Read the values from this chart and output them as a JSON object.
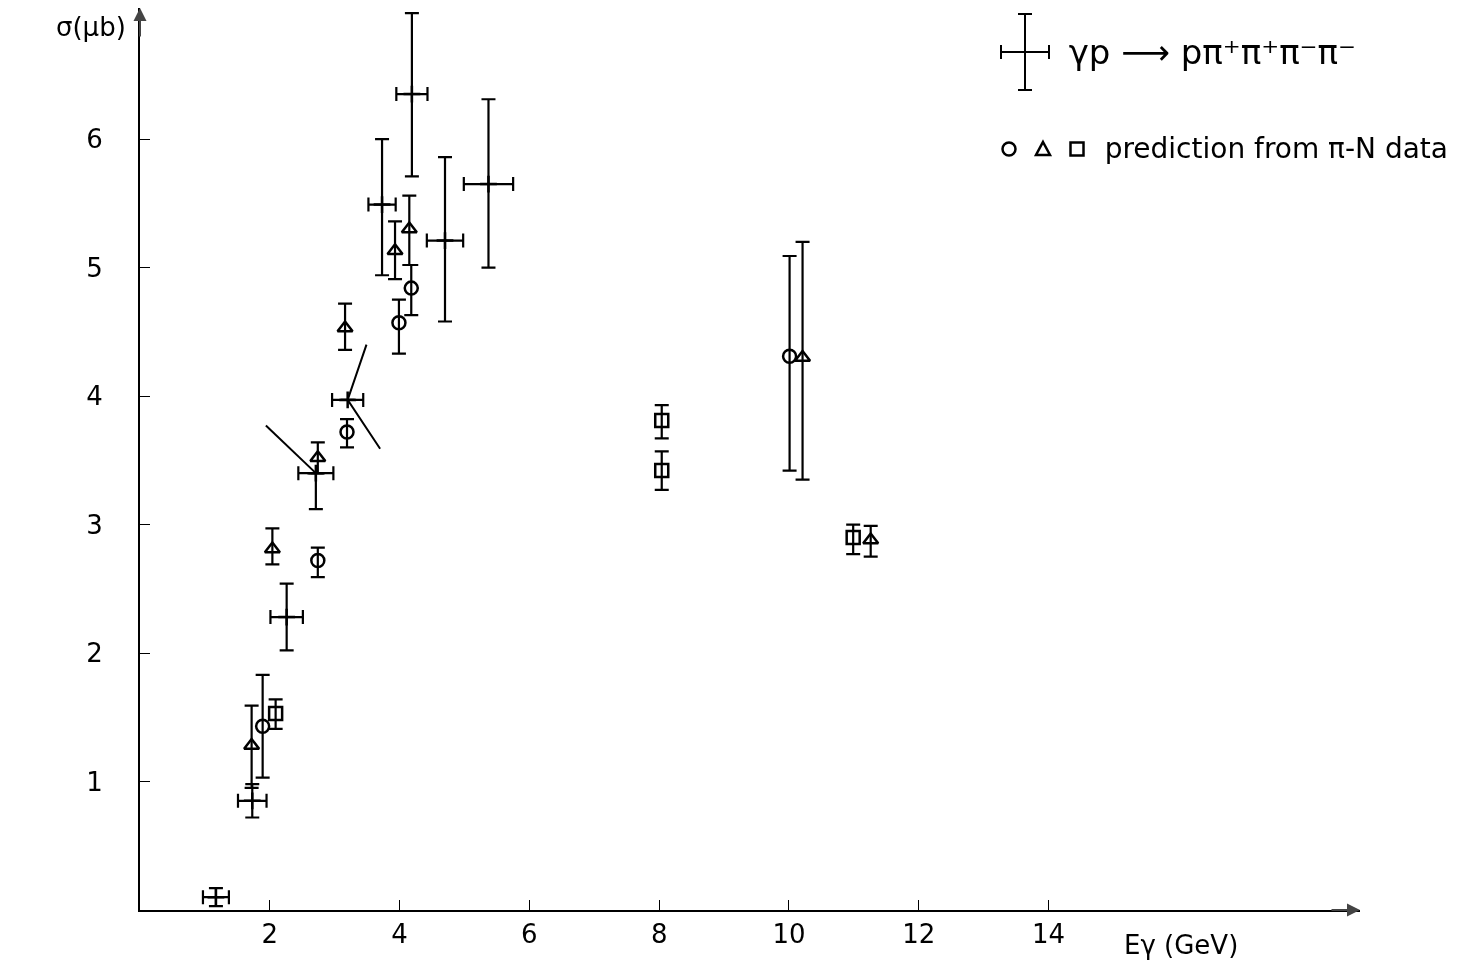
{
  "chart_data": {
    "type": "scatter",
    "xlabel": "Eγ (GeV)",
    "ylabel": "σ(μb)",
    "xlim": [
      0,
      18.8
    ],
    "ylim": [
      0,
      7.02
    ],
    "xticks": [
      2,
      4,
      6,
      8,
      10,
      12,
      14
    ],
    "yticks": [
      1,
      2,
      3,
      4,
      5,
      6
    ],
    "grid": false,
    "legend": "top right",
    "series": [
      {
        "name": "γp ⟶ pπ⁺π⁺π⁻π⁻",
        "color": "#000000",
        "marker": "cross",
        "x": [
          1.17,
          1.73,
          2.26,
          2.71,
          3.2,
          3.73,
          4.19,
          4.7,
          5.37
        ],
        "values": [
          0.1,
          0.85,
          2.28,
          3.4,
          3.97,
          5.49,
          6.35,
          5.21,
          5.65
        ],
        "errors": [
          0.07,
          0.13,
          0.26,
          [
            3.12,
            3.4
          ],
          null,
          [
            4.94,
            6.0
          ],
          [
            5.71,
            6.98
          ],
          [
            4.58,
            5.86
          ],
          [
            5.0,
            6.31
          ]
        ],
        "xerrors": [
          0.2,
          0.22,
          0.25,
          0.27,
          0.24,
          0.21,
          0.24,
          0.28,
          0.38
        ]
      },
      {
        "type": "line",
        "color": "#000000",
        "marker": "none",
        "x": [
          1.94,
          2.71
        ],
        "values": [
          3.77,
          3.4
        ]
      },
      {
        "type": "line",
        "color": "#000000",
        "marker": "none",
        "x": [
          3.49,
          3.2,
          3.7
        ],
        "values": [
          4.4,
          3.97,
          3.59
        ]
      },
      {
        "color": "#000000",
        "marker": "circle",
        "x": [
          1.89,
          2.74,
          3.19,
          3.99,
          4.18,
          10.01
        ],
        "values": [
          1.43,
          2.72,
          3.72,
          4.57,
          4.84,
          4.31
        ],
        "errors": [
          [
            1.03,
            1.83
          ],
          [
            2.59,
            2.82
          ],
          [
            3.6,
            3.82
          ],
          [
            4.33,
            4.75
          ],
          [
            4.63,
            5.02
          ],
          [
            3.42,
            5.09
          ]
        ]
      },
      {
        "color": "#000000",
        "marker": "triangle",
        "x": [
          1.72,
          2.04,
          2.74,
          3.16,
          3.93,
          4.15,
          10.21,
          11.26
        ],
        "values": [
          1.28,
          2.81,
          3.52,
          4.53,
          5.13,
          5.3,
          4.3,
          2.88
        ],
        "errors": [
          [
            0.95,
            1.59
          ],
          [
            2.69,
            2.97
          ],
          [
            3.4,
            3.64
          ],
          [
            4.36,
            4.72
          ],
          [
            4.91,
            5.36
          ],
          [
            5.02,
            5.56
          ],
          [
            3.35,
            5.2
          ],
          [
            2.75,
            2.99
          ]
        ]
      },
      {
        "name": "prediction from π-N data",
        "color": "#000000",
        "marker": "square",
        "x": [
          2.09,
          8.04,
          8.04,
          10.99
        ],
        "values": [
          1.53,
          3.81,
          3.42,
          2.9
        ],
        "errors": [
          [
            1.41,
            1.64
          ],
          [
            3.67,
            3.93
          ],
          [
            3.27,
            3.57
          ],
          [
            2.77,
            3.0
          ]
        ]
      }
    ]
  }
}
